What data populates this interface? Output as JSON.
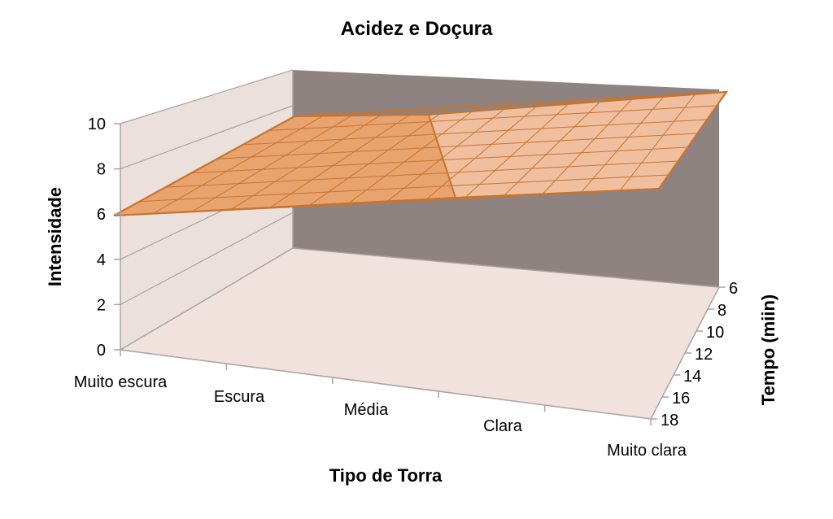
{
  "chart_data": {
    "type": "surface",
    "title": "Acidez e Doçura",
    "xlabel": "Tipo de Torra",
    "ylabel": "Intensidade",
    "zlabel": "Tempo (miin)",
    "x_categories": [
      "Muito escura",
      "Escura",
      "Média",
      "Clara",
      "Muito clara"
    ],
    "z_ticks": [
      "6",
      "8",
      "10",
      "12",
      "14",
      "16",
      "18"
    ],
    "y_ticks": [
      "0",
      "2",
      "4",
      "6",
      "8",
      "10"
    ],
    "ylim": [
      0,
      10
    ],
    "grid": true,
    "colors": {
      "surface": "#e8a36e",
      "surface_light": "#f0bfa0",
      "surface_edge": "#c8742f",
      "floor": "#f1e2dd",
      "left_wall": "#ece0dc",
      "back_wall": "#8e8381"
    }
  }
}
